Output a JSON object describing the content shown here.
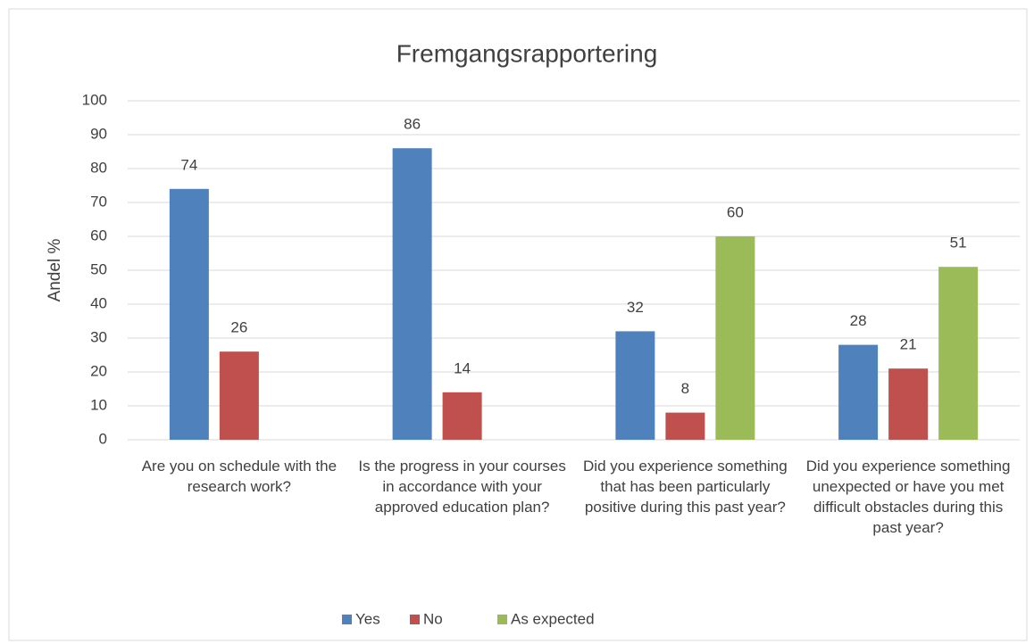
{
  "chart_data": {
    "type": "bar",
    "title": "Fremgangsrapportering",
    "y_label": "Andel %",
    "categories": [
      "Are you on schedule with the research work?",
      "Is the progress in your courses in accordance with your approved education plan?",
      "Did you experience something that has been particularly positive during this past year?",
      "Did you experience something unexpected or have you met difficult obstacles during this past year?"
    ],
    "series": [
      {
        "name": "Yes",
        "color": "#4f81bd",
        "values": [
          74,
          86,
          32,
          28
        ]
      },
      {
        "name": "No",
        "color": "#c0504d",
        "values": [
          26,
          14,
          8,
          21
        ]
      },
      {
        "name": "As expected",
        "color": "#9bbb59",
        "values": [
          null,
          null,
          60,
          51
        ]
      }
    ],
    "ylim": [
      0,
      100
    ],
    "yticks": [
      0,
      10,
      20,
      30,
      40,
      50,
      60,
      70,
      80,
      90,
      100
    ],
    "grid": true,
    "legend": "bottom"
  }
}
